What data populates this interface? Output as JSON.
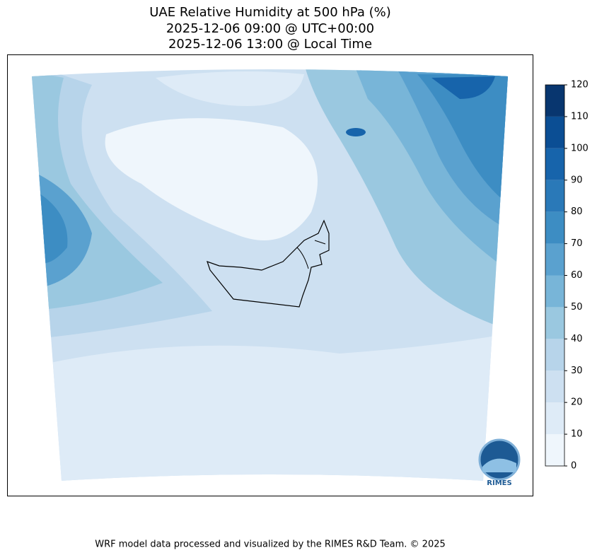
{
  "title": {
    "lines": [
      "UAE Relative Humidity at 500 hPa (%)",
      "2025-12-06 09:00 @ UTC+00:00",
      "2025-12-06 13:00 @ Local Time"
    ]
  },
  "colorbar": {
    "ticks": [
      0,
      10,
      20,
      30,
      40,
      50,
      60,
      70,
      80,
      90,
      100,
      110,
      120
    ],
    "colors": [
      "#eff6fc",
      "#deebf7",
      "#cde0f1",
      "#b7d4ea",
      "#9ac8e0",
      "#78b5d8",
      "#5aa1cf",
      "#3d8dc3",
      "#2a79b8",
      "#1764ab",
      "#0b4e94",
      "#08366f"
    ]
  },
  "logo": {
    "label": "RIMES"
  },
  "footer": "WRF model data processed and visualized by the RIMES R&D Team. © 2025"
}
